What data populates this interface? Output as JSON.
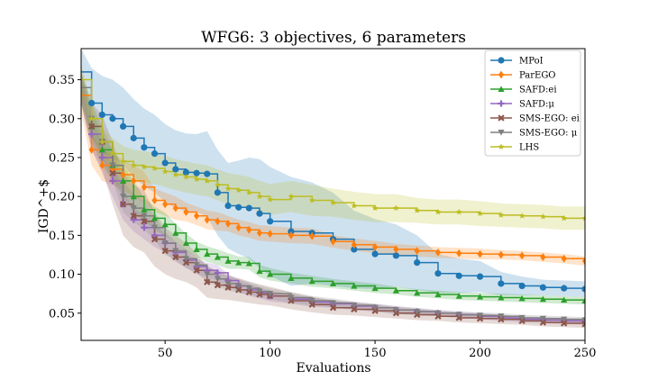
{
  "chart_data": {
    "type": "line",
    "title": "WFG6: 3 objectives, 6 parameters",
    "xlabel": "Evaluations",
    "ylabel": "IGD^+$",
    "xlim": [
      10,
      250
    ],
    "ylim": [
      0.015,
      0.39
    ],
    "x_ticks": [
      50,
      100,
      150,
      200,
      250
    ],
    "y_ticks": [
      0.05,
      0.1,
      0.15,
      0.2,
      0.25,
      0.3,
      0.35
    ],
    "x_tick_labels": [
      "50",
      "100",
      "150",
      "200",
      "250"
    ],
    "y_tick_labels": [
      "0.05",
      "0.10",
      "0.15",
      "0.20",
      "0.25",
      "0.30",
      "0.35"
    ],
    "grid": false,
    "legend_position": "top-right",
    "series": [
      {
        "name": "MPoI",
        "color": "#1f77b4",
        "marker": "circle",
        "x": [
          10,
          15,
          20,
          25,
          30,
          35,
          40,
          45,
          50,
          55,
          60,
          65,
          70,
          75,
          80,
          85,
          90,
          95,
          100,
          110,
          120,
          130,
          140,
          150,
          160,
          170,
          180,
          190,
          200,
          210,
          220,
          230,
          240,
          250
        ],
        "y": [
          0.36,
          0.32,
          0.305,
          0.3,
          0.29,
          0.275,
          0.263,
          0.255,
          0.243,
          0.235,
          0.231,
          0.23,
          0.229,
          0.205,
          0.188,
          0.186,
          0.185,
          0.178,
          0.168,
          0.155,
          0.153,
          0.145,
          0.132,
          0.126,
          0.124,
          0.115,
          0.101,
          0.098,
          0.097,
          0.088,
          0.085,
          0.083,
          0.082,
          0.081
        ],
        "band": [
          0.03,
          0.045,
          0.05,
          0.05,
          0.05,
          0.05,
          0.05,
          0.05,
          0.05,
          0.05,
          0.05,
          0.05,
          0.055,
          0.055,
          0.055,
          0.06,
          0.065,
          0.07,
          0.07,
          0.07,
          0.065,
          0.06,
          0.05,
          0.045,
          0.04,
          0.035,
          0.025,
          0.022,
          0.02,
          0.015,
          0.012,
          0.01,
          0.01,
          0.01
        ]
      },
      {
        "name": "ParEGO",
        "color": "#ff7f0e",
        "marker": "diamond",
        "x": [
          10,
          15,
          20,
          25,
          30,
          35,
          40,
          45,
          50,
          55,
          60,
          65,
          70,
          75,
          80,
          85,
          90,
          95,
          100,
          110,
          120,
          130,
          140,
          150,
          160,
          170,
          180,
          190,
          200,
          210,
          220,
          230,
          240,
          250
        ],
        "y": [
          0.33,
          0.26,
          0.24,
          0.235,
          0.228,
          0.22,
          0.212,
          0.195,
          0.19,
          0.185,
          0.18,
          0.175,
          0.17,
          0.168,
          0.165,
          0.16,
          0.157,
          0.153,
          0.152,
          0.15,
          0.149,
          0.142,
          0.138,
          0.135,
          0.132,
          0.13,
          0.128,
          0.127,
          0.126,
          0.125,
          0.124,
          0.122,
          0.12,
          0.117
        ],
        "band": [
          0.02,
          0.02,
          0.02,
          0.02,
          0.02,
          0.02,
          0.02,
          0.015,
          0.015,
          0.015,
          0.012,
          0.012,
          0.012,
          0.012,
          0.01,
          0.01,
          0.01,
          0.01,
          0.01,
          0.01,
          0.01,
          0.008,
          0.008,
          0.008,
          0.007,
          0.007,
          0.007,
          0.007,
          0.007,
          0.006,
          0.006,
          0.006,
          0.006,
          0.006
        ]
      },
      {
        "name": "SAFD:ei",
        "color": "#2ca02c",
        "marker": "triangle-up",
        "x": [
          10,
          15,
          20,
          25,
          30,
          35,
          40,
          45,
          50,
          55,
          60,
          65,
          70,
          75,
          80,
          85,
          90,
          95,
          100,
          110,
          120,
          130,
          140,
          150,
          160,
          170,
          180,
          190,
          200,
          210,
          220,
          230,
          240,
          250
        ],
        "y": [
          0.34,
          0.29,
          0.26,
          0.24,
          0.22,
          0.2,
          0.183,
          0.172,
          0.164,
          0.153,
          0.14,
          0.132,
          0.126,
          0.122,
          0.117,
          0.115,
          0.114,
          0.104,
          0.1,
          0.095,
          0.091,
          0.088,
          0.085,
          0.082,
          0.079,
          0.076,
          0.074,
          0.072,
          0.071,
          0.07,
          0.069,
          0.068,
          0.067,
          0.066
        ],
        "band": [
          0.02,
          0.02,
          0.02,
          0.02,
          0.02,
          0.02,
          0.015,
          0.015,
          0.015,
          0.012,
          0.012,
          0.01,
          0.01,
          0.01,
          0.01,
          0.008,
          0.008,
          0.008,
          0.008,
          0.007,
          0.007,
          0.006,
          0.006,
          0.006,
          0.005,
          0.005,
          0.005,
          0.005,
          0.005,
          0.005,
          0.005,
          0.005,
          0.005,
          0.005
        ]
      },
      {
        "name": "SAFD:$\\mu$",
        "color": "#9467bd",
        "marker": "plus",
        "x": [
          10,
          15,
          20,
          25,
          30,
          35,
          40,
          45,
          50,
          55,
          60,
          65,
          70,
          75,
          80,
          85,
          90,
          95,
          100,
          110,
          120,
          130,
          140,
          150,
          160,
          170,
          180,
          190,
          200,
          210,
          220,
          230,
          240,
          250
        ],
        "y": [
          0.34,
          0.28,
          0.25,
          0.22,
          0.19,
          0.17,
          0.16,
          0.15,
          0.14,
          0.128,
          0.118,
          0.11,
          0.105,
          0.102,
          0.092,
          0.085,
          0.08,
          0.076,
          0.072,
          0.068,
          0.064,
          0.062,
          0.059,
          0.057,
          0.054,
          0.052,
          0.05,
          0.048,
          0.046,
          0.044,
          0.042,
          0.041,
          0.04,
          0.039
        ],
        "band": [
          0.02,
          0.02,
          0.02,
          0.02,
          0.02,
          0.015,
          0.015,
          0.015,
          0.012,
          0.012,
          0.01,
          0.01,
          0.01,
          0.01,
          0.008,
          0.008,
          0.008,
          0.007,
          0.007,
          0.006,
          0.006,
          0.005,
          0.005,
          0.005,
          0.005,
          0.004,
          0.004,
          0.004,
          0.004,
          0.004,
          0.004,
          0.004,
          0.004,
          0.004
        ]
      },
      {
        "name": "SMS-EGO: ei",
        "color": "#8c564b",
        "marker": "x",
        "x": [
          10,
          15,
          20,
          25,
          30,
          35,
          40,
          45,
          50,
          55,
          60,
          65,
          70,
          75,
          80,
          85,
          90,
          95,
          100,
          110,
          120,
          130,
          140,
          150,
          160,
          170,
          180,
          190,
          200,
          210,
          220,
          230,
          240,
          250
        ],
        "y": [
          0.34,
          0.29,
          0.27,
          0.23,
          0.19,
          0.175,
          0.168,
          0.145,
          0.13,
          0.122,
          0.115,
          0.105,
          0.09,
          0.086,
          0.083,
          0.08,
          0.077,
          0.074,
          0.072,
          0.066,
          0.061,
          0.057,
          0.055,
          0.053,
          0.05,
          0.048,
          0.046,
          0.044,
          0.043,
          0.042,
          0.04,
          0.038,
          0.037,
          0.036
        ],
        "band": [
          0.02,
          0.03,
          0.035,
          0.04,
          0.04,
          0.04,
          0.04,
          0.035,
          0.03,
          0.028,
          0.025,
          0.022,
          0.02,
          0.018,
          0.016,
          0.015,
          0.014,
          0.013,
          0.012,
          0.011,
          0.01,
          0.009,
          0.008,
          0.008,
          0.007,
          0.007,
          0.006,
          0.006,
          0.006,
          0.006,
          0.005,
          0.005,
          0.005,
          0.005
        ]
      },
      {
        "name": "SMS-EGO: $\\mu$",
        "color": "#7f7f7f",
        "marker": "triangle-down",
        "x": [
          10,
          15,
          20,
          25,
          30,
          35,
          40,
          45,
          50,
          55,
          60,
          65,
          70,
          75,
          80,
          85,
          90,
          95,
          100,
          110,
          120,
          130,
          140,
          150,
          160,
          170,
          180,
          190,
          200,
          210,
          220,
          230,
          240,
          250
        ],
        "y": [
          0.34,
          0.3,
          0.27,
          0.24,
          0.2,
          0.185,
          0.175,
          0.16,
          0.14,
          0.13,
          0.12,
          0.112,
          0.1,
          0.094,
          0.088,
          0.085,
          0.082,
          0.078,
          0.075,
          0.07,
          0.066,
          0.063,
          0.06,
          0.057,
          0.054,
          0.052,
          0.05,
          0.048,
          0.047,
          0.046,
          0.044,
          0.043,
          0.042,
          0.041
        ],
        "band": [
          0.02,
          0.02,
          0.02,
          0.02,
          0.02,
          0.018,
          0.018,
          0.015,
          0.015,
          0.012,
          0.012,
          0.01,
          0.01,
          0.01,
          0.009,
          0.009,
          0.008,
          0.008,
          0.007,
          0.007,
          0.006,
          0.006,
          0.005,
          0.005,
          0.005,
          0.005,
          0.004,
          0.004,
          0.004,
          0.004,
          0.004,
          0.004,
          0.004,
          0.004
        ]
      },
      {
        "name": "LHS",
        "color": "#bcbd22",
        "marker": "star",
        "x": [
          10,
          15,
          20,
          25,
          30,
          35,
          40,
          45,
          50,
          55,
          60,
          65,
          70,
          75,
          80,
          85,
          90,
          95,
          100,
          110,
          120,
          130,
          140,
          150,
          160,
          170,
          180,
          190,
          200,
          210,
          220,
          230,
          240,
          250
        ],
        "y": [
          0.35,
          0.3,
          0.27,
          0.255,
          0.245,
          0.24,
          0.238,
          0.236,
          0.232,
          0.228,
          0.225,
          0.222,
          0.22,
          0.215,
          0.21,
          0.208,
          0.205,
          0.2,
          0.196,
          0.2,
          0.195,
          0.192,
          0.188,
          0.185,
          0.185,
          0.182,
          0.18,
          0.18,
          0.178,
          0.176,
          0.175,
          0.174,
          0.172,
          0.172
        ],
        "band": [
          0.02,
          0.02,
          0.02,
          0.02,
          0.02,
          0.02,
          0.02,
          0.02,
          0.02,
          0.02,
          0.02,
          0.02,
          0.02,
          0.02,
          0.02,
          0.02,
          0.02,
          0.02,
          0.02,
          0.02,
          0.02,
          0.018,
          0.018,
          0.018,
          0.018,
          0.016,
          0.016,
          0.016,
          0.016,
          0.015,
          0.015,
          0.015,
          0.015,
          0.015
        ]
      }
    ]
  }
}
